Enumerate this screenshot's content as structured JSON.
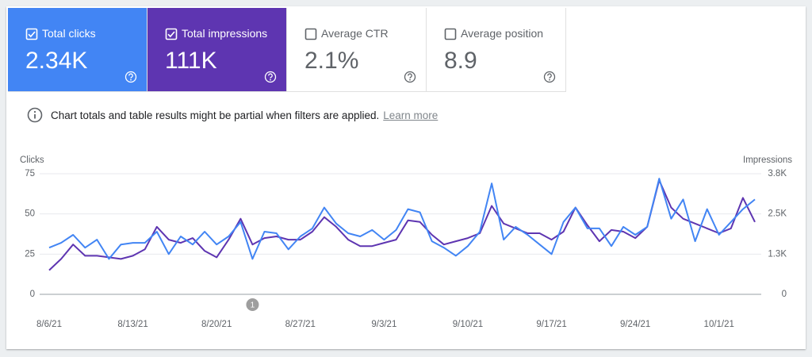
{
  "metrics": [
    {
      "label": "Total clicks",
      "value": "2.34K",
      "checked": true,
      "color": "#4285f4"
    },
    {
      "label": "Total impressions",
      "value": "111K",
      "checked": true,
      "color": "#5e35b1"
    },
    {
      "label": "Average CTR",
      "value": "2.1%",
      "checked": false,
      "color": "#ffffff"
    },
    {
      "label": "Average position",
      "value": "8.9",
      "checked": false,
      "color": "#ffffff"
    }
  ],
  "notice": {
    "text": "Chart totals and table results might be partial when filters are applied.",
    "link": "Learn more"
  },
  "chart_data": {
    "type": "line",
    "y_label": "Clicks",
    "y2_label": "Impressions",
    "categories": [
      "8/6/21",
      null,
      null,
      null,
      null,
      null,
      null,
      "8/13/21",
      null,
      null,
      null,
      null,
      null,
      null,
      "8/20/21",
      null,
      null,
      null,
      null,
      null,
      null,
      "8/27/21",
      null,
      null,
      null,
      null,
      null,
      null,
      "9/3/21",
      null,
      null,
      null,
      null,
      null,
      null,
      "9/10/21",
      null,
      null,
      null,
      null,
      null,
      null,
      "9/17/21",
      null,
      null,
      null,
      null,
      null,
      null,
      "9/24/21",
      null,
      null,
      null,
      null,
      null,
      null,
      "10/1/21",
      null,
      null,
      null
    ],
    "series": [
      {
        "color": "#4285f4",
        "values": [
          29,
          32,
          37,
          29,
          34,
          22,
          31,
          32,
          32,
          39,
          25,
          36,
          31,
          39,
          31,
          36,
          45,
          22,
          39,
          38,
          28,
          36,
          41,
          54,
          44,
          38,
          36,
          40,
          34,
          40,
          53,
          51,
          33,
          29,
          24,
          30,
          39,
          69,
          34,
          42,
          37,
          31,
          25,
          45,
          54,
          41,
          41,
          30,
          42,
          37,
          42,
          72,
          47,
          59,
          33,
          53,
          37,
          45,
          53,
          59
        ]
      },
      {
        "color": "#5e35b1",
        "axis": "y2",
        "values": [
          750,
          1100,
          1550,
          1200,
          1200,
          1150,
          1100,
          1200,
          1400,
          2100,
          1700,
          1600,
          1750,
          1350,
          1150,
          1700,
          2350,
          1550,
          1750,
          1800,
          1700,
          1700,
          1950,
          2400,
          2100,
          1700,
          1500,
          1500,
          1600,
          1700,
          2300,
          2250,
          1850,
          1550,
          1650,
          1750,
          1900,
          2750,
          2200,
          2050,
          1900,
          1900,
          1700,
          1950,
          2700,
          2150,
          1650,
          2000,
          1950,
          1750,
          2100,
          3550,
          2700,
          2350,
          2200,
          2050,
          1900,
          2050,
          3000,
          2250
        ]
      }
    ],
    "ylim": [
      0,
      75
    ],
    "yticks": [
      0,
      25,
      50,
      75
    ],
    "y2lim": [
      0,
      3750
    ],
    "y2ticks": [
      0,
      {
        "value": 1250,
        "label": "1.3K"
      },
      {
        "value": 2500,
        "label": "2.5K"
      },
      {
        "value": 3750,
        "label": "3.8K"
      }
    ],
    "grid": true,
    "annotations": [
      {
        "text": "1",
        "x": 17
      }
    ]
  }
}
